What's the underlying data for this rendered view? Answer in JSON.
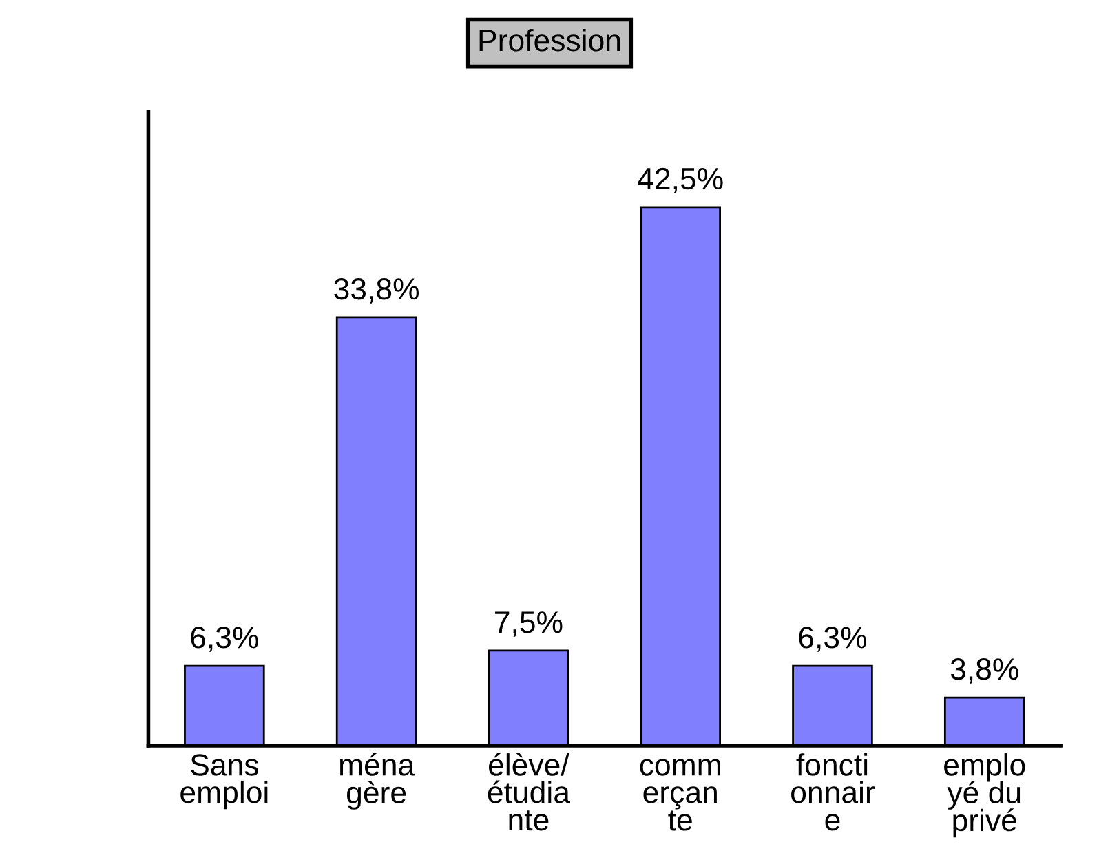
{
  "chart_data": {
    "type": "bar",
    "title": "Profession",
    "categories": [
      "Sans\nemploi",
      "ména\ngère",
      "élève/\nétudia\nnte",
      "comm\nerçan\nte",
      "foncti\nonnair\ne",
      "emplo\nyé du\nprivé"
    ],
    "values": [
      6.3,
      33.8,
      7.5,
      42.5,
      6.3,
      3.8
    ],
    "value_labels": [
      "6,3%",
      "33,8%",
      "7,5%",
      "42,5%",
      "6,3%",
      "3,8%"
    ],
    "color": "#8080ff",
    "ylim": [
      0,
      50
    ],
    "tick_labels": "x",
    "grid": false
  }
}
